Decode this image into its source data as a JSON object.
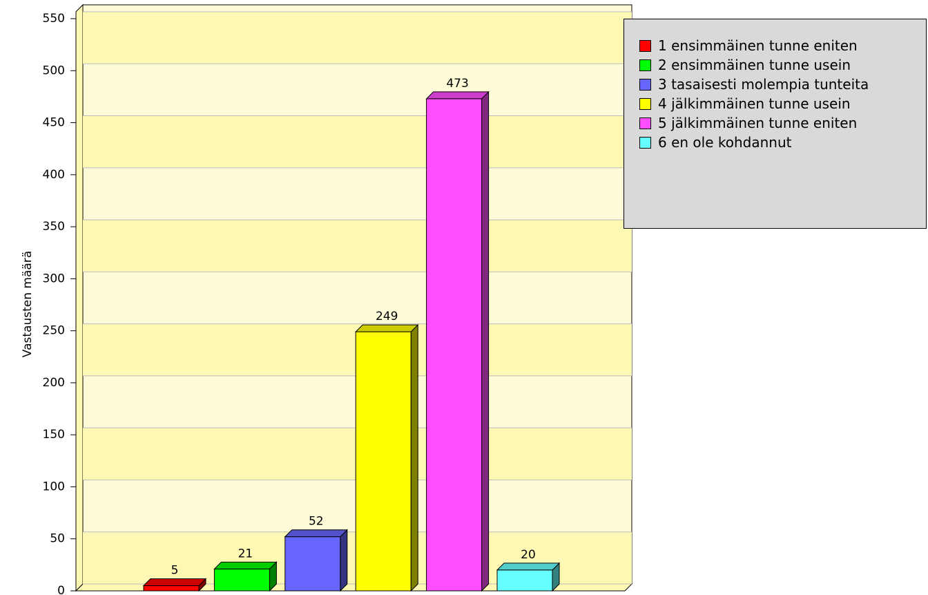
{
  "chart_data": {
    "type": "bar3d",
    "ylabel": "Vastausten määrä",
    "categories": [
      "1 ensimmäinen tunne eniten",
      "2 ensimmäinen tunne usein",
      "3 tasaisesti molempia tunteita",
      "4 jälkimmäinen tunne usein",
      "5 jälkimmäinen tunne eniten",
      "6 en ole kohdannut"
    ],
    "values": [
      5,
      21,
      52,
      249,
      473,
      20
    ],
    "colors": [
      "#ff0000",
      "#00ff00",
      "#6666ff",
      "#ffff00",
      "#ff4dff",
      "#66ffff"
    ],
    "ylim": [
      0,
      550
    ],
    "yticks": [
      0,
      50,
      100,
      150,
      200,
      250,
      300,
      350,
      400,
      450,
      500,
      550
    ],
    "grid": true,
    "legend": "right"
  }
}
